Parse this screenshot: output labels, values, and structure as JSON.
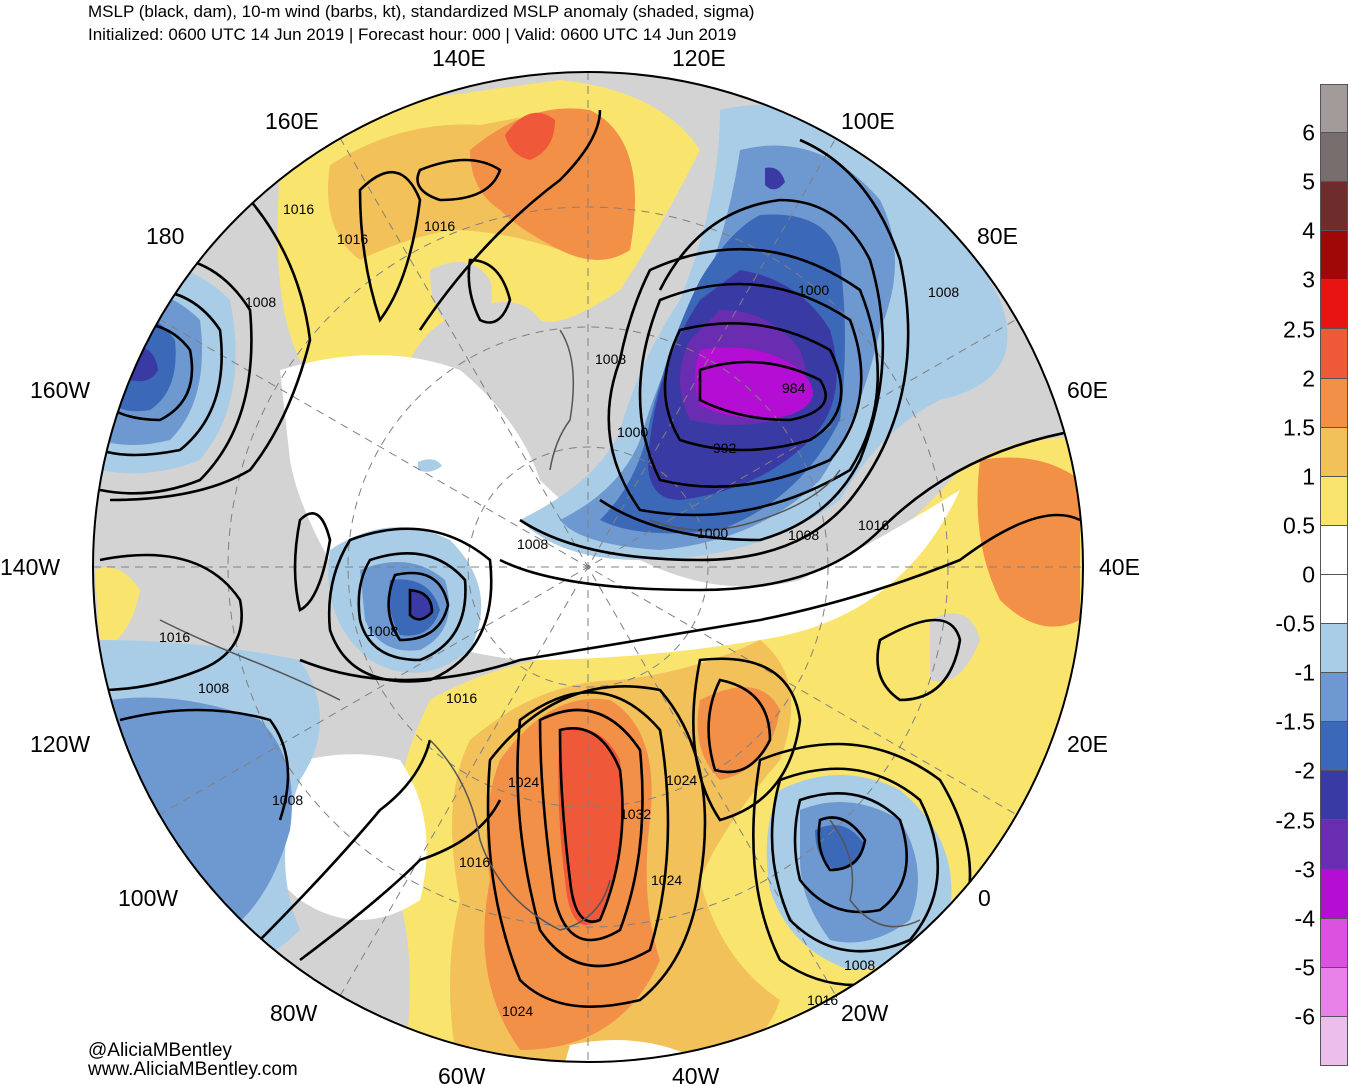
{
  "header": {
    "title": "MSLP (black, dam), 10-m wind (barbs, kt), standardized MSLP anomaly (shaded, sigma)",
    "subtitle": "Initialized: 0600 UTC 14 Jun 2019 | Forecast hour: 000 | Valid: 0600 UTC 14 Jun 2019"
  },
  "map": {
    "longitude_labels": {
      "lon_140E": "140E",
      "lon_120E": "120E",
      "lon_160E": "160E",
      "lon_100E": "100E",
      "lon_180": "180",
      "lon_80E": "80E",
      "lon_160W": "160W",
      "lon_60E": "60E",
      "lon_140W": "140W",
      "lon_40E": "40E",
      "lon_120W": "120W",
      "lon_20E": "20E",
      "lon_100W": "100W",
      "lon_0": "0",
      "lon_80W": "80W",
      "lon_20W": "20W",
      "lon_60W": "60W",
      "lon_40W": "40W"
    },
    "isobar_labels": [
      "1016",
      "1016",
      "1016",
      "1008",
      "1008",
      "1000",
      "1008",
      "984",
      "1000",
      "992",
      "1008",
      "1000",
      "1008",
      "1016",
      "1008",
      "1016",
      "1016",
      "1008",
      "1008",
      "1024",
      "1024",
      "1032",
      "1016",
      "1024",
      "1008",
      "1016",
      "1024"
    ],
    "features": {
      "low_center_russia": "984",
      "high_center_greenland": "1032"
    }
  },
  "colorbar": {
    "colors": [
      "#a39a9a",
      "#786e6e",
      "#6e2c2c",
      "#a00808",
      "#e81414",
      "#f0583a",
      "#f39048",
      "#f3c15a",
      "#f9e56e",
      "#ffffff",
      "#ffffff",
      "#a9cde6",
      "#6e98d0",
      "#3c68b8",
      "#3a3aa4",
      "#6a2cb0",
      "#b40ed4",
      "#dc52e0",
      "#e882e8",
      "#ecbeec"
    ],
    "ticks": [
      "6",
      "5",
      "4",
      "3",
      "2.5",
      "2",
      "1.5",
      "1",
      "0.5",
      "0",
      "-0.5",
      "-1",
      "-1.5",
      "-2",
      "-2.5",
      "-3",
      "-4",
      "-5",
      "-6"
    ]
  },
  "credits": {
    "handle": "@AliciaMBentley",
    "website": "www.AliciaMBentley.com"
  }
}
